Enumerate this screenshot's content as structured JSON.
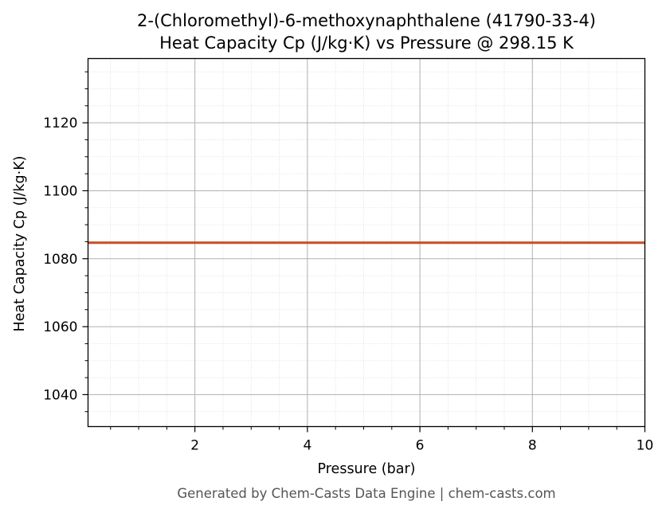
{
  "chart_data": {
    "type": "line",
    "title": "2-(Chloromethyl)-6-methoxynaphthalene (41790-33-4)",
    "subtitle": "Heat Capacity Cp (J/kg·K) vs Pressure @ 298.15 K",
    "xlabel": "Pressure (bar)",
    "ylabel": "Heat Capacity Cp (J/kg·K)",
    "xlim": [
      0.1,
      10
    ],
    "ylim": [
      1030.6,
      1138.9
    ],
    "xticks": [
      2,
      4,
      6,
      8,
      10
    ],
    "xtick_labels": [
      "2",
      "4",
      "6",
      "8",
      "10"
    ],
    "yticks": [
      1040,
      1060,
      1080,
      1100,
      1120
    ],
    "ytick_labels": [
      "1040",
      "1060",
      "1080",
      "1100",
      "1120"
    ],
    "grid": true,
    "series": [
      {
        "color": "#c8532a",
        "x": [
          0.1,
          1,
          2,
          3,
          4,
          5,
          6,
          7,
          8,
          9,
          10
        ],
        "y": [
          1084.7,
          1084.7,
          1084.7,
          1084.7,
          1084.7,
          1084.7,
          1084.7,
          1084.7,
          1084.7,
          1084.7,
          1084.7
        ]
      }
    ]
  },
  "footer": "Generated by Chem-Casts Data Engine | chem-casts.com"
}
